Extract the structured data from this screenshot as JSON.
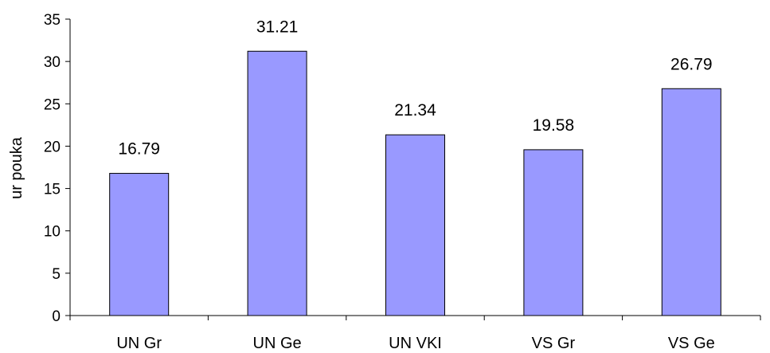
{
  "chart_data": {
    "type": "bar",
    "title": "",
    "xlabel": "",
    "ylabel": "ur pouka",
    "categories": [
      "UN Gr",
      "UN Ge",
      "UN VKI",
      "VS Gr",
      "VS Ge"
    ],
    "values": [
      16.79,
      31.21,
      21.34,
      19.58,
      26.79
    ],
    "data_labels": [
      "16.79",
      "31.21",
      "21.34",
      "19.58",
      "26.79"
    ],
    "yticks": [
      "0",
      "5",
      "10",
      "15",
      "20",
      "25",
      "30",
      "35"
    ],
    "ylim": [
      0,
      35
    ],
    "grid": false,
    "legend": "none",
    "bar_color": "#9999ff",
    "bar_edge_color": "#000000"
  }
}
